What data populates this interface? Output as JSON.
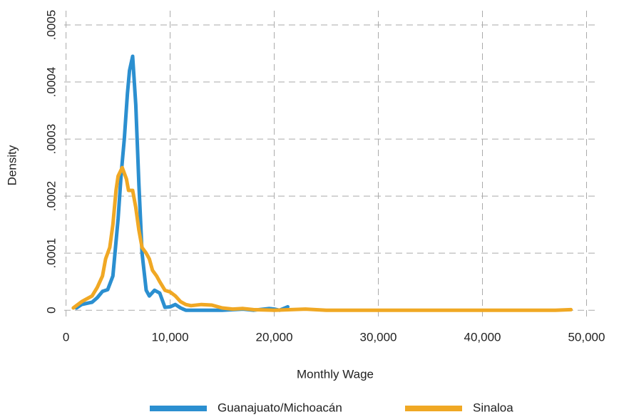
{
  "chart_data": {
    "type": "line",
    "xlabel": "Monthly Wage",
    "ylabel": "Density",
    "xlim": [
      -1000,
      51200
    ],
    "ylim": [
      -6e-06,
      0.000525
    ],
    "xticks": [
      0,
      {
        "value": 10000,
        "label": "10,000"
      },
      {
        "value": 20000,
        "label": "20,000"
      },
      {
        "value": 30000,
        "label": "30,000"
      },
      {
        "value": 40000,
        "label": "40,000"
      },
      {
        "value": 50000,
        "label": "50,000"
      }
    ],
    "yticks": [
      0,
      {
        "value": 0.0001,
        "label": ".0001"
      },
      {
        "value": 0.0002,
        "label": ".0002"
      },
      {
        "value": 0.0003,
        "label": ".0003"
      },
      {
        "value": 0.0004,
        "label": ".0004"
      },
      {
        "value": 0.0005,
        "label": ".0005"
      }
    ],
    "grid": true,
    "legend": "bottom",
    "series": [
      {
        "name": "Guanajuato/Michoacán",
        "color": "#2b8fd0",
        "x": [
          1000,
          1500,
          2000,
          2500,
          3000,
          3500,
          4000,
          4500,
          5000,
          5300,
          5600,
          5900,
          6100,
          6400,
          6700,
          7000,
          7300,
          7700,
          8000,
          8500,
          9000,
          9500,
          10000,
          10500,
          11000,
          11500,
          15000,
          17000,
          18000,
          19500,
          20000,
          20500,
          21300
        ],
        "values": [
          4e-06,
          1e-05,
          1.2e-05,
          1.4e-05,
          2.2e-05,
          3.3e-05,
          3.6e-05,
          6e-05,
          0.00016,
          0.00024,
          0.0003,
          0.00038,
          0.00042,
          0.000445,
          0.00036,
          0.00022,
          0.0001,
          3.5e-05,
          2.5e-05,
          3.5e-05,
          3e-05,
          5e-06,
          6e-06,
          1e-05,
          4e-06,
          0,
          0,
          2e-06,
          0,
          3e-06,
          2e-06,
          0,
          6e-06
        ]
      },
      {
        "name": "Sinaloa",
        "color": "#f0a824",
        "x": [
          700,
          1500,
          2000,
          2500,
          3000,
          3500,
          3800,
          4200,
          4500,
          4800,
          5000,
          5400,
          5800,
          6000,
          6400,
          6700,
          7000,
          7300,
          7700,
          8000,
          8300,
          8700,
          9000,
          9500,
          10000,
          10500,
          11000,
          11500,
          12000,
          13000,
          14000,
          15000,
          16000,
          17000,
          18000,
          20000,
          23000,
          25000,
          47000,
          48500
        ],
        "values": [
          4e-06,
          1.5e-05,
          2e-05,
          2.5e-05,
          4e-05,
          6e-05,
          9e-05,
          0.00011,
          0.00015,
          0.00021,
          0.000235,
          0.00025,
          0.00023,
          0.00021,
          0.00021,
          0.00018,
          0.00014,
          0.00011,
          0.0001,
          9e-05,
          7e-05,
          6e-05,
          5e-05,
          3.5e-05,
          3.2e-05,
          2.5e-05,
          1.5e-05,
          1e-05,
          8e-06,
          1e-05,
          9e-06,
          4e-06,
          2e-06,
          3e-06,
          1e-06,
          0,
          2e-06,
          0,
          0,
          1e-06
        ]
      }
    ]
  }
}
